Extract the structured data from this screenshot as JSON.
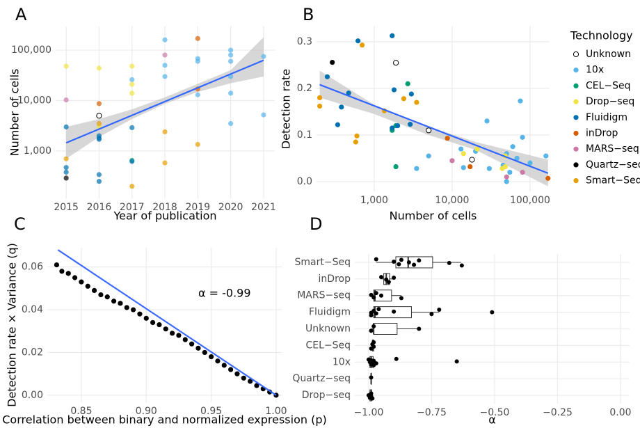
{
  "chart_data": [
    {
      "panel": "A",
      "type": "scatter",
      "x_label": "Year of publication",
      "y_label": "Number of cells",
      "xlim": [
        2014.68,
        2021.34
      ],
      "ylim": [
        115,
        295000
      ],
      "yscale": "log",
      "grid": true,
      "xticks": [
        2015,
        2016,
        2017,
        2018,
        2019,
        2020,
        2021
      ],
      "yticks": [
        {
          "value": 1000,
          "label": "1,000"
        },
        {
          "value": 10000,
          "label": "10,000"
        },
        {
          "value": 100000,
          "label": "100,000"
        }
      ],
      "point_opacity": 0.7,
      "series": [
        {
          "color": "#000000",
          "shape": "open",
          "x": [
            2016
          ],
          "values": [
            5000
          ]
        },
        {
          "color": "#56b4e9",
          "x": [
            2017,
            2018,
            2018,
            2018,
            2019,
            2019,
            2019,
            2020,
            2020,
            2020,
            2020,
            2020,
            2020,
            2021,
            2021
          ],
          "values": [
            26000,
            160000,
            50000,
            30000,
            68000,
            60000,
            13000,
            100000,
            80000,
            60000,
            30000,
            14000,
            3500,
            75000,
            5200
          ]
        },
        {
          "color": "#009e73",
          "x": [
            2017
          ],
          "values": [
            650
          ]
        },
        {
          "color": "#f0e442",
          "x": [
            2015,
            2016,
            2016,
            2017,
            2017,
            2017
          ],
          "values": [
            48000,
            44000,
            3000,
            48000,
            21000,
            14000
          ]
        },
        {
          "color": "#0072b2",
          "x": [
            2015,
            2015,
            2015,
            2016,
            2016,
            2016,
            2016,
            2016,
            2017,
            2017
          ],
          "values": [
            3000,
            470,
            380,
            2000,
            1800,
            1700,
            340,
            250,
            2900,
            620
          ]
        },
        {
          "color": "#d55e00",
          "x": [
            2016,
            2019,
            2019
          ],
          "values": [
            8700,
            170000,
            17000
          ]
        },
        {
          "color": "#cc79a7",
          "x": [
            2015,
            2018
          ],
          "values": [
            10300,
            80000
          ]
        },
        {
          "color": "#000000",
          "x": [
            2015
          ],
          "values": [
            290
          ]
        },
        {
          "color": "#e69f00",
          "x": [
            2015,
            2016,
            2017,
            2018,
            2018,
            2019
          ],
          "values": [
            700,
            3500,
            200,
            2400,
            580,
            1350
          ]
        }
      ],
      "fit": {
        "color": "#3366ff",
        "x": [
          2015,
          2021
        ],
        "values": [
          1450,
          63000
        ]
      },
      "band": {
        "color": "#bdbdbd",
        "x": [
          2015,
          2016,
          2017,
          2018,
          2019,
          2020,
          2021
        ],
        "lower": [
          700,
          1900,
          4300,
          8600,
          14800,
          22000,
          30000
        ],
        "upper": [
          3000,
          4300,
          6700,
          11600,
          21500,
          40000,
          180000
        ]
      }
    },
    {
      "panel": "B",
      "type": "scatter",
      "x_label": "Number of cells",
      "y_label": "Detection rate",
      "xlim": [
        182,
        178000
      ],
      "xscale": "log",
      "ylim": [
        -0.021,
        0.333
      ],
      "grid": true,
      "xticks": [
        {
          "value": 1000,
          "label": "1,000"
        },
        {
          "value": 10000,
          "label": "10,000"
        },
        {
          "value": 100000,
          "label": "100,000"
        }
      ],
      "yticks": [
        {
          "value": 0,
          "label": "0.0"
        },
        0.1,
        0.2,
        0.3
      ],
      "legend_title": "Technology",
      "legend_position": "right",
      "point_opacity": 1,
      "series": [
        {
          "name": "Unknown",
          "color": "#000000",
          "shape": "open",
          "x": [
            1900,
            5000,
            18000
          ],
          "values": [
            0.255,
            0.11,
            0.047
          ]
        },
        {
          "name": "10x",
          "color": "#56b4e9",
          "x": [
            3500,
            5000,
            13000,
            14000,
            20000,
            28000,
            30000,
            50000,
            55000,
            60000,
            68000,
            75000,
            80000,
            100000,
            160000,
            50000,
            45000
          ],
          "values": [
            0.028,
            0.055,
            0.07,
            0.03,
            0.065,
            0.13,
            0.028,
            0.06,
            0.02,
            0.075,
            0.05,
            0.173,
            0.095,
            0.04,
            0.055,
            0.0,
            0.035
          ]
        },
        {
          "name": "CEL−Seq",
          "color": "#009e73",
          "x": [
            1900,
            2700,
            1900,
            1700
          ],
          "values": [
            0.032,
            0.21,
            0.12,
            0.11
          ]
        },
        {
          "name": "Drop−seq",
          "color": "#f0e442",
          "x": [
            14000,
            21000,
            44000,
            48000,
            48000
          ],
          "values": [
            0.06,
            0.07,
            0.028,
            0.055,
            0.032
          ]
        },
        {
          "name": "Fluidigm",
          "color": "#0072b2",
          "x": [
            380,
            340,
            470,
            620,
            1700,
            1800,
            1700,
            2000,
            2900,
            3000,
            250
          ],
          "values": [
            0.16,
            0.122,
            0.19,
            0.302,
            0.313,
            0.197,
            0.115,
            0.12,
            0.123,
            0.188,
            0.225
          ]
        },
        {
          "name": "inDrop",
          "color": "#d55e00",
          "x": [
            8700,
            17000,
            170000
          ],
          "values": [
            0.093,
            0.032,
            0.007
          ]
        },
        {
          "name": "MARS−seq",
          "color": "#cc79a7",
          "x": [
            10000,
            80000,
            50000
          ],
          "values": [
            0.045,
            0.02,
            0.01
          ]
        },
        {
          "name": "Quartz−seq",
          "color": "#000000",
          "x": [
            290
          ],
          "values": [
            0.256
          ]
        },
        {
          "name": "Smart−Seq",
          "color": "#e69f00",
          "x": [
            200,
            200,
            700,
            580,
            600,
            1350,
            2400,
            3500
          ],
          "values": [
            0.18,
            0.162,
            0.293,
            0.085,
            0.098,
            0.152,
            0.178,
            0.17
          ]
        }
      ],
      "fit": {
        "color": "#3366ff",
        "x": [
          200,
          170000
        ],
        "values": [
          0.208,
          0.018
        ]
      },
      "band": {
        "color": "#bdbdbd",
        "x": [
          200,
          1000,
          5000,
          20000,
          170000
        ],
        "lower": [
          0.18,
          0.145,
          0.1,
          0.068,
          -0.01
        ],
        "upper": [
          0.238,
          0.165,
          0.118,
          0.085,
          0.047
        ]
      }
    },
    {
      "panel": "C",
      "type": "scatter",
      "x_label": "Correlation between binary and normalized expression (p)",
      "y_label": "Detection rate × Variance (q)",
      "annotation": "α = -0.99",
      "xlim": [
        0.8238,
        1.0043
      ],
      "ylim": [
        -0.0033,
        0.069
      ],
      "grid": true,
      "xticks": [
        0.85,
        {
          "value": 0.9,
          "label": "0.90"
        },
        0.95,
        {
          "value": 1,
          "label": "1.00"
        }
      ],
      "yticks": [
        {
          "value": 0,
          "label": "0.00"
        },
        0.02,
        0.04,
        0.06
      ],
      "point_opacity": 1,
      "series": [
        {
          "color": "#000000",
          "x": [
            0.831,
            0.835,
            0.84,
            0.845,
            0.85,
            0.855,
            0.86,
            0.865,
            0.87,
            0.875,
            0.88,
            0.885,
            0.89,
            0.895,
            0.9,
            0.905,
            0.91,
            0.915,
            0.92,
            0.925,
            0.93,
            0.935,
            0.94,
            0.945,
            0.95,
            0.955,
            0.96,
            0.965,
            0.97,
            0.975,
            0.98,
            0.985,
            0.99,
            0.995,
            1.0
          ],
          "values": [
            0.061,
            0.058,
            0.057,
            0.055,
            0.053,
            0.051,
            0.049,
            0.047,
            0.046,
            0.044,
            0.043,
            0.041,
            0.04,
            0.038,
            0.036,
            0.034,
            0.033,
            0.031,
            0.029,
            0.028,
            0.026,
            0.024,
            0.022,
            0.02,
            0.018,
            0.016,
            0.014,
            0.012,
            0.01,
            0.008,
            0.0065,
            0.0045,
            0.003,
            0.0015,
            0.0
          ]
        }
      ],
      "fit": {
        "color": "#3d6bff",
        "x": [
          0.832,
          1.0
        ],
        "values": [
          0.068,
          0.0
        ]
      }
    },
    {
      "panel": "D",
      "type": "box",
      "x_label": "α",
      "xlim": [
        -1.055,
        0.036
      ],
      "grid": true,
      "xticks": [
        {
          "value": -1,
          "label": "−1.00"
        },
        {
          "value": -0.75,
          "label": "−0.75"
        },
        {
          "value": -0.5,
          "label": "−0.50"
        },
        {
          "value": -0.25,
          "label": "−0.25"
        },
        {
          "value": 0,
          "label": "0.00"
        }
      ],
      "categories": [
        "Smart−Seq",
        "inDrop",
        "MARS−seq",
        "Fluidigm",
        "Unknown",
        "CEL−Seq",
        "10x",
        "Quartz−seq",
        "Drop−seq"
      ],
      "min": [
        -0.97,
        -0.95,
        -0.99,
        -0.99,
        -0.99,
        -0.99,
        -1.0,
        -0.99,
        -1.0
      ],
      "q1": [
        -0.892,
        -0.94,
        -0.98,
        -0.98,
        -0.98,
        -0.985,
        -0.995,
        -0.99,
        -0.995
      ],
      "median": [
        -0.843,
        -0.93,
        -0.975,
        -0.975,
        -0.98,
        -0.983,
        -0.99,
        -0.99,
        -0.99
      ],
      "q3": [
        -0.746,
        -0.917,
        -0.909,
        -0.83,
        -0.887,
        -0.98,
        -0.982,
        -0.99,
        -0.988
      ],
      "max": [
        -0.633,
        -0.9,
        -0.87,
        -0.72,
        -0.8,
        -0.98,
        -0.97,
        -0.99,
        -0.985
      ],
      "points": [
        [
          -0.97,
          -0.9,
          -0.88,
          -0.87,
          -0.84,
          -0.82,
          -0.8,
          -0.68,
          -0.63
        ],
        [
          -0.95,
          -0.93,
          -0.92,
          -0.9
        ],
        [
          -0.99,
          -0.98,
          -0.97,
          -0.95,
          -0.87
        ],
        [
          -0.99,
          -0.99,
          -0.98,
          -0.97,
          -0.96,
          -0.9,
          -0.75,
          -0.72,
          -0.51
        ],
        [
          -0.99,
          -0.98,
          -0.8
        ],
        [
          -0.99,
          -0.985,
          -0.98,
          -0.98
        ],
        [
          -1.0,
          -0.995,
          -0.99,
          -0.99,
          -0.985,
          -0.98,
          -0.98,
          -0.97,
          -0.89,
          -0.65
        ],
        [
          -0.99
        ],
        [
          -1.0,
          -0.995,
          -0.99,
          -0.99,
          -0.985
        ]
      ]
    }
  ]
}
